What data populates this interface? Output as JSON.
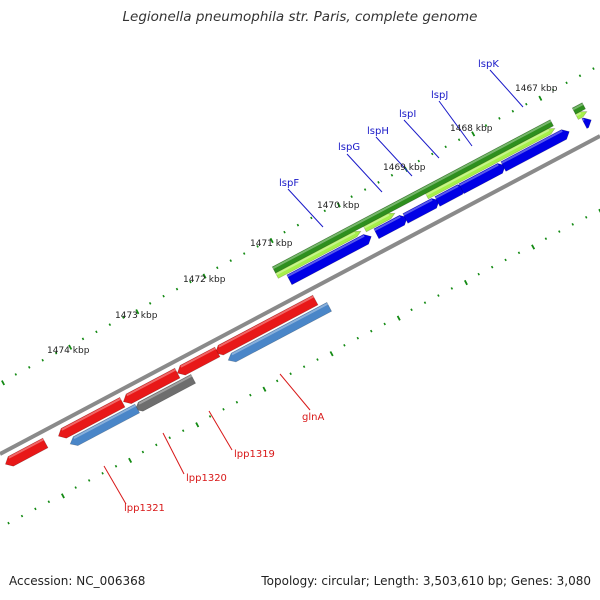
{
  "title": "Legionella pneumophila str. Paris, complete genome",
  "footer": {
    "accession": "Accession: NC_006368",
    "summary": "Topology: circular; Length: 3,503,610 bp; Genes: 3,080"
  },
  "scale_ticks": [
    "1467 kbp",
    "1468 kbp",
    "1469 kbp",
    "1470 kbp",
    "1471 kbp",
    "1472 kbp",
    "1473 kbp",
    "1474 kbp"
  ],
  "genes_forward": [
    {
      "name": "lspK",
      "color": "#1a1ac8"
    },
    {
      "name": "lspJ",
      "color": "#1a1ac8"
    },
    {
      "name": "lspI",
      "color": "#1a1ac8"
    },
    {
      "name": "lspH",
      "color": "#1a1ac8"
    },
    {
      "name": "lspG",
      "color": "#1a1ac8"
    },
    {
      "name": "lspF",
      "color": "#1a1ac8"
    }
  ],
  "genes_reverse": [
    {
      "name": "glnA",
      "color": "#d81818"
    },
    {
      "name": "lpp1319",
      "color": "#d81818"
    },
    {
      "name": "lpp1320",
      "color": "#d81818"
    },
    {
      "name": "lpp1321",
      "color": "#d81818"
    }
  ],
  "colors": {
    "cds_forward": "#0000e6",
    "gene_forward": "#a6f04a",
    "operon_forward": "#2e8f1e",
    "cds_reverse": "#e81818",
    "gene_reverse": "#4a86c8",
    "pseudo": "#6e6e6e",
    "backbone": "#8a8a8a",
    "ticks": "#138a13"
  }
}
